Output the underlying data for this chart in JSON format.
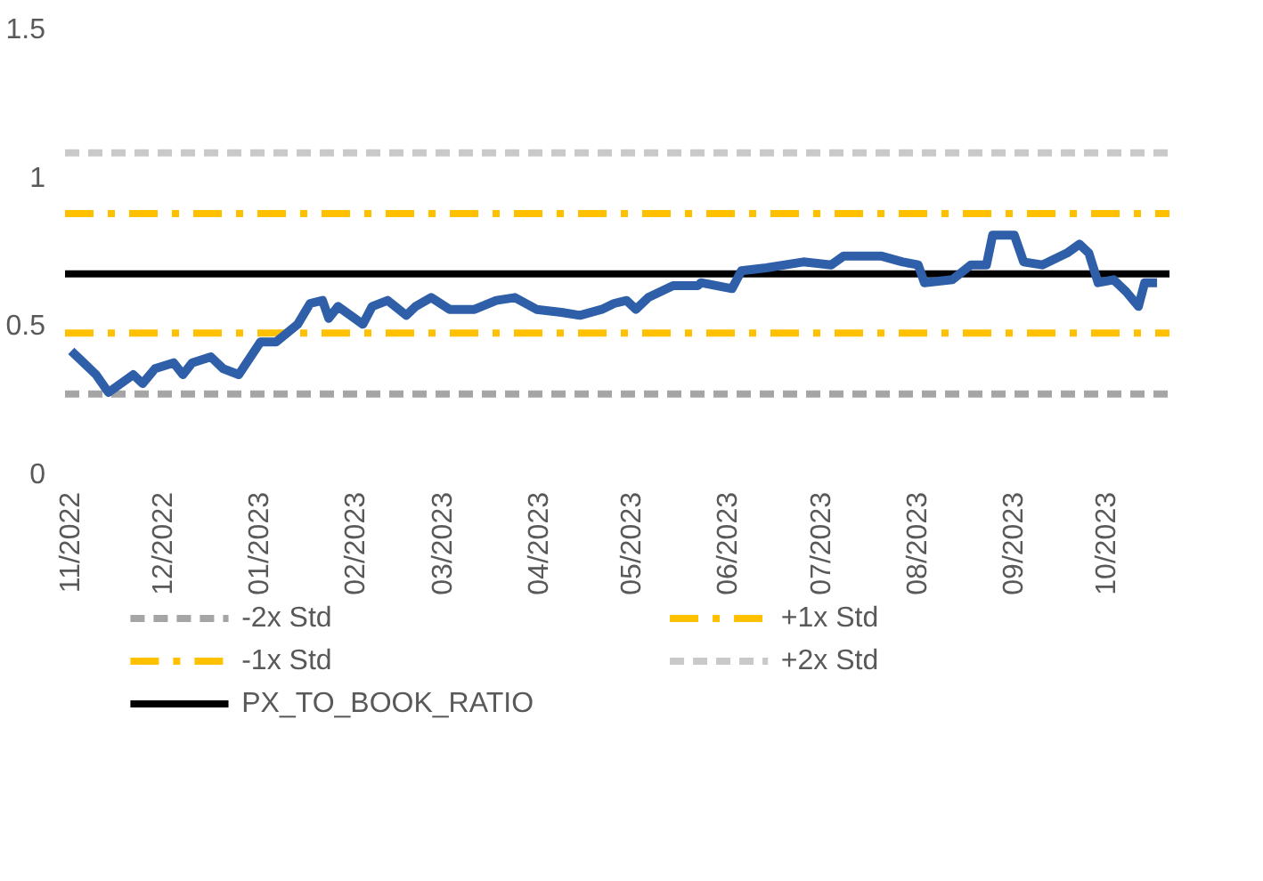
{
  "chart_data": {
    "type": "line",
    "x": [
      "2022-11-01",
      "2022-11-05",
      "2022-11-09",
      "2022-11-13",
      "2022-11-17",
      "2022-11-21",
      "2022-11-24",
      "2022-11-28",
      "2022-12-04",
      "2022-12-07",
      "2022-12-10",
      "2022-12-16",
      "2022-12-20",
      "2022-12-25",
      "2023-01-01",
      "2023-01-06",
      "2023-01-13",
      "2023-01-17",
      "2023-01-21",
      "2023-01-23",
      "2023-01-26",
      "2023-01-30",
      "2023-02-03",
      "2023-02-06",
      "2023-02-11",
      "2023-02-17",
      "2023-02-20",
      "2023-02-25",
      "2023-03-03",
      "2023-03-11",
      "2023-03-18",
      "2023-03-24",
      "2023-03-31",
      "2023-04-08",
      "2023-04-14",
      "2023-04-21",
      "2023-04-25",
      "2023-04-29",
      "2023-05-02",
      "2023-05-06",
      "2023-05-14",
      "2023-05-22",
      "2023-05-23",
      "2023-06-02",
      "2023-06-05",
      "2023-06-13",
      "2023-06-25",
      "2023-07-04",
      "2023-07-08",
      "2023-07-20",
      "2023-07-27",
      "2023-08-01",
      "2023-08-03",
      "2023-08-12",
      "2023-08-18",
      "2023-08-23",
      "2023-08-25",
      "2023-09-01",
      "2023-09-04",
      "2023-09-10",
      "2023-09-18",
      "2023-09-22",
      "2023-09-25",
      "2023-09-28",
      "2023-10-03",
      "2023-10-07",
      "2023-10-11",
      "2023-10-13",
      "2023-10-17"
    ],
    "series": [
      {
        "color": "#2e5fa8",
        "values": [
          0.41,
          0.37,
          0.33,
          0.27,
          0.3,
          0.33,
          0.3,
          0.35,
          0.37,
          0.33,
          0.37,
          0.39,
          0.35,
          0.33,
          0.44,
          0.44,
          0.5,
          0.57,
          0.58,
          0.52,
          0.56,
          0.53,
          0.5,
          0.56,
          0.58,
          0.53,
          0.56,
          0.59,
          0.55,
          0.55,
          0.58,
          0.59,
          0.55,
          0.54,
          0.53,
          0.55,
          0.57,
          0.58,
          0.55,
          0.59,
          0.63,
          0.63,
          0.64,
          0.62,
          0.68,
          0.69,
          0.71,
          0.7,
          0.73,
          0.73,
          0.71,
          0.7,
          0.64,
          0.65,
          0.7,
          0.7,
          0.8,
          0.8,
          0.71,
          0.7,
          0.74,
          0.77,
          0.74,
          0.64,
          0.65,
          0.61,
          0.56,
          0.64,
          0.64
        ]
      }
    ],
    "xlim": [
      "2022-10-30",
      "2023-10-21"
    ],
    "xticks": [
      {
        "value": "2022-11-01",
        "label": "11/2022"
      },
      {
        "value": "2022-12-01",
        "label": "12/2022"
      },
      {
        "value": "2023-01-01",
        "label": "01/2023"
      },
      {
        "value": "2023-02-01",
        "label": "02/2023"
      },
      {
        "value": "2023-03-01",
        "label": "03/2023"
      },
      {
        "value": "2023-04-01",
        "label": "04/2023"
      },
      {
        "value": "2023-05-01",
        "label": "05/2023"
      },
      {
        "value": "2023-06-01",
        "label": "06/2023"
      },
      {
        "value": "2023-07-01",
        "label": "07/2023"
      },
      {
        "value": "2023-08-01",
        "label": "08/2023"
      },
      {
        "value": "2023-09-01",
        "label": "09/2023"
      },
      {
        "value": "2023-10-01",
        "label": "10/2023"
      }
    ],
    "ylim": [
      0,
      1.5
    ],
    "yticks": [
      0,
      0.5,
      1,
      1.5
    ],
    "ref_lines": [
      {
        "axis": "y",
        "value": 0.265,
        "label": "-2x Std",
        "color": "#a5a5a5",
        "line_style": "dashed"
      },
      {
        "axis": "y",
        "value": 0.47,
        "label": "-1x Std",
        "color": "#ffc000",
        "line_style": "dashdot"
      },
      {
        "axis": "y",
        "value": 0.67,
        "label": "PX_TO_BOOK_RATIO",
        "color": "#000000",
        "line_style": "solid"
      },
      {
        "axis": "y",
        "value": 0.873,
        "label": "+1x Std",
        "color": "#ffc000",
        "line_style": "dashdot"
      },
      {
        "axis": "y",
        "value": 1.078,
        "label": "+2x Std",
        "color": "#c9c9c9",
        "line_style": "dashed"
      }
    ],
    "grid": false,
    "legend": "bottom"
  }
}
